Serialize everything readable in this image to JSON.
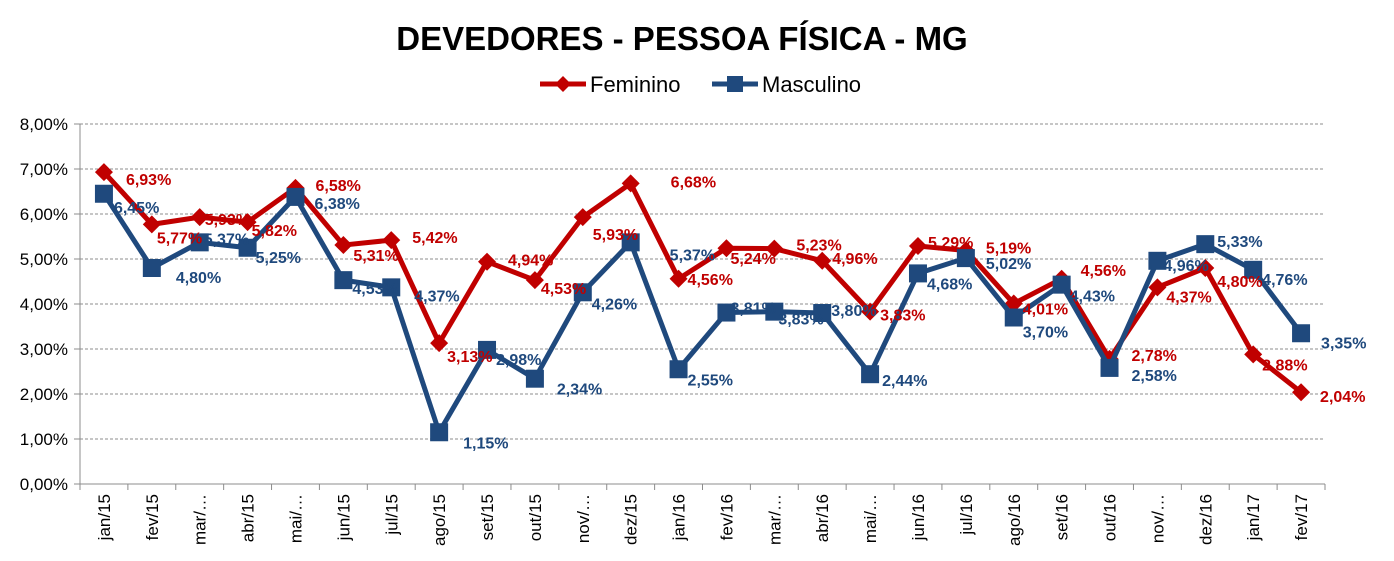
{
  "chart_data": {
    "type": "line",
    "title": "DEVEDORES - PESSOA FÍSICA - MG",
    "categories": [
      "jan/15",
      "fev/15",
      "mar/…",
      "abr/15",
      "mai/…",
      "jun/15",
      "jul/15",
      "ago/15",
      "set/15",
      "out/15",
      "nov/…",
      "dez/15",
      "jan/16",
      "fev/16",
      "mar/…",
      "abr/16",
      "mai/…",
      "jun/16",
      "jul/16",
      "ago/16",
      "set/16",
      "out/16",
      "nov/…",
      "dez/16",
      "jan/17",
      "fev/17"
    ],
    "ylim": [
      0,
      8
    ],
    "y_ticks": [
      "0,00%",
      "1,00%",
      "2,00%",
      "3,00%",
      "4,00%",
      "5,00%",
      "6,00%",
      "7,00%",
      "8,00%"
    ],
    "grid": true,
    "legend_position": "top-center",
    "series": [
      {
        "name": "Feminino",
        "color": "#C00000",
        "marker": "diamond",
        "values": [
          6.93,
          5.77,
          5.93,
          5.82,
          6.58,
          5.31,
          5.42,
          3.13,
          4.94,
          4.53,
          5.93,
          6.68,
          4.56,
          5.24,
          5.23,
          4.96,
          3.83,
          5.29,
          5.19,
          4.01,
          4.56,
          2.78,
          4.37,
          4.8,
          2.88,
          2.04
        ],
        "labels": [
          "6,93%",
          "5,77%",
          "5,93%",
          "5,82%",
          "6,58%",
          "5,31%",
          "5,42%",
          "3,13%",
          "4,94%",
          "4,53%",
          "5,93%",
          "6,68%",
          "4,56%",
          "5,24%",
          "5,23%",
          "4,96%",
          "3,83%",
          "5,29%",
          "5,19%",
          "4,01%",
          "4,56%",
          "2,78%",
          "4,37%",
          "4,80%",
          "2,88%",
          "2,04%"
        ]
      },
      {
        "name": "Masculino",
        "color": "#1F497D",
        "marker": "square",
        "values": [
          6.45,
          4.8,
          5.37,
          5.25,
          6.38,
          4.53,
          4.37,
          1.15,
          2.98,
          2.34,
          4.26,
          5.37,
          2.55,
          3.81,
          3.83,
          3.8,
          2.44,
          4.68,
          5.02,
          3.7,
          4.43,
          2.58,
          4.96,
          5.33,
          4.76,
          3.35
        ],
        "labels": [
          "6,45%",
          "4,80%",
          "5,37%",
          "5,25%",
          "6,38%",
          "4,53%",
          "4,37%",
          "1,15%",
          "2,98%",
          "2,34%",
          "4,26%",
          "5,37%",
          "2,55%",
          "3,81%",
          "3,83%",
          "3,80%",
          "2,44%",
          "4,68%",
          "5,02%",
          "3,70%",
          "4,43%",
          "2,58%",
          "4,96%",
          "5,33%",
          "4,76%",
          "3,35%"
        ]
      }
    ]
  }
}
